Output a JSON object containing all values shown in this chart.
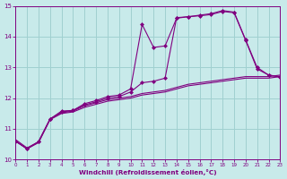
{
  "background_color": "#c8eaea",
  "grid_color": "#a0d0d0",
  "line_color": "#800080",
  "xlabel": "Windchill (Refroidissement éolien,°C)",
  "xlim": [
    0,
    23
  ],
  "ylim": [
    10,
    15
  ],
  "yticks": [
    10,
    11,
    12,
    13,
    14,
    15
  ],
  "xticks": [
    0,
    1,
    2,
    3,
    4,
    5,
    6,
    7,
    8,
    9,
    10,
    11,
    12,
    13,
    14,
    15,
    16,
    17,
    18,
    19,
    20,
    21,
    22,
    23
  ],
  "series": [
    {
      "x": [
        0,
        1,
        2,
        3,
        4,
        5,
        6,
        7,
        8,
        9,
        10,
        11,
        12,
        13,
        14,
        15,
        16,
        17,
        18,
        19,
        20,
        21,
        22,
        23
      ],
      "y": [
        10.6,
        10.35,
        10.55,
        11.3,
        11.5,
        11.55,
        11.7,
        11.8,
        11.9,
        11.95,
        12.0,
        12.1,
        12.15,
        12.2,
        12.3,
        12.4,
        12.45,
        12.5,
        12.55,
        12.6,
        12.65,
        12.65,
        12.65,
        12.7
      ],
      "marker": null
    },
    {
      "x": [
        0,
        1,
        2,
        3,
        4,
        5,
        6,
        7,
        8,
        9,
        10,
        11,
        12,
        13,
        14,
        15,
        16,
        17,
        18,
        19,
        20,
        21,
        22,
        23
      ],
      "y": [
        10.65,
        10.38,
        10.58,
        11.32,
        11.52,
        11.58,
        11.75,
        11.85,
        11.95,
        12.0,
        12.05,
        12.15,
        12.2,
        12.25,
        12.35,
        12.45,
        12.5,
        12.55,
        12.6,
        12.65,
        12.7,
        12.7,
        12.7,
        12.75
      ],
      "marker": null
    },
    {
      "x": [
        0,
        1,
        2,
        3,
        4,
        5,
        6,
        7,
        8,
        9,
        10,
        11,
        12,
        13,
        14,
        15,
        16,
        17,
        18,
        19,
        20,
        21,
        22,
        23
      ],
      "y": [
        10.6,
        10.35,
        10.58,
        11.32,
        11.58,
        11.6,
        11.82,
        11.92,
        12.05,
        12.1,
        12.3,
        14.4,
        13.65,
        13.7,
        14.6,
        14.65,
        14.7,
        14.75,
        14.85,
        14.8,
        13.9,
        13.0,
        12.75,
        12.7
      ],
      "marker": "D"
    },
    {
      "x": [
        0,
        1,
        2,
        3,
        4,
        5,
        6,
        7,
        8,
        9,
        10,
        11,
        12,
        13,
        14,
        15,
        16,
        17,
        18,
        19,
        20,
        21,
        22,
        23
      ],
      "y": [
        10.6,
        10.35,
        10.58,
        11.32,
        11.55,
        11.6,
        11.78,
        11.88,
        12.0,
        12.05,
        12.2,
        12.5,
        12.55,
        12.65,
        14.62,
        14.65,
        14.68,
        14.72,
        14.82,
        14.78,
        13.88,
        12.95,
        12.75,
        12.68
      ],
      "marker": "D"
    }
  ]
}
